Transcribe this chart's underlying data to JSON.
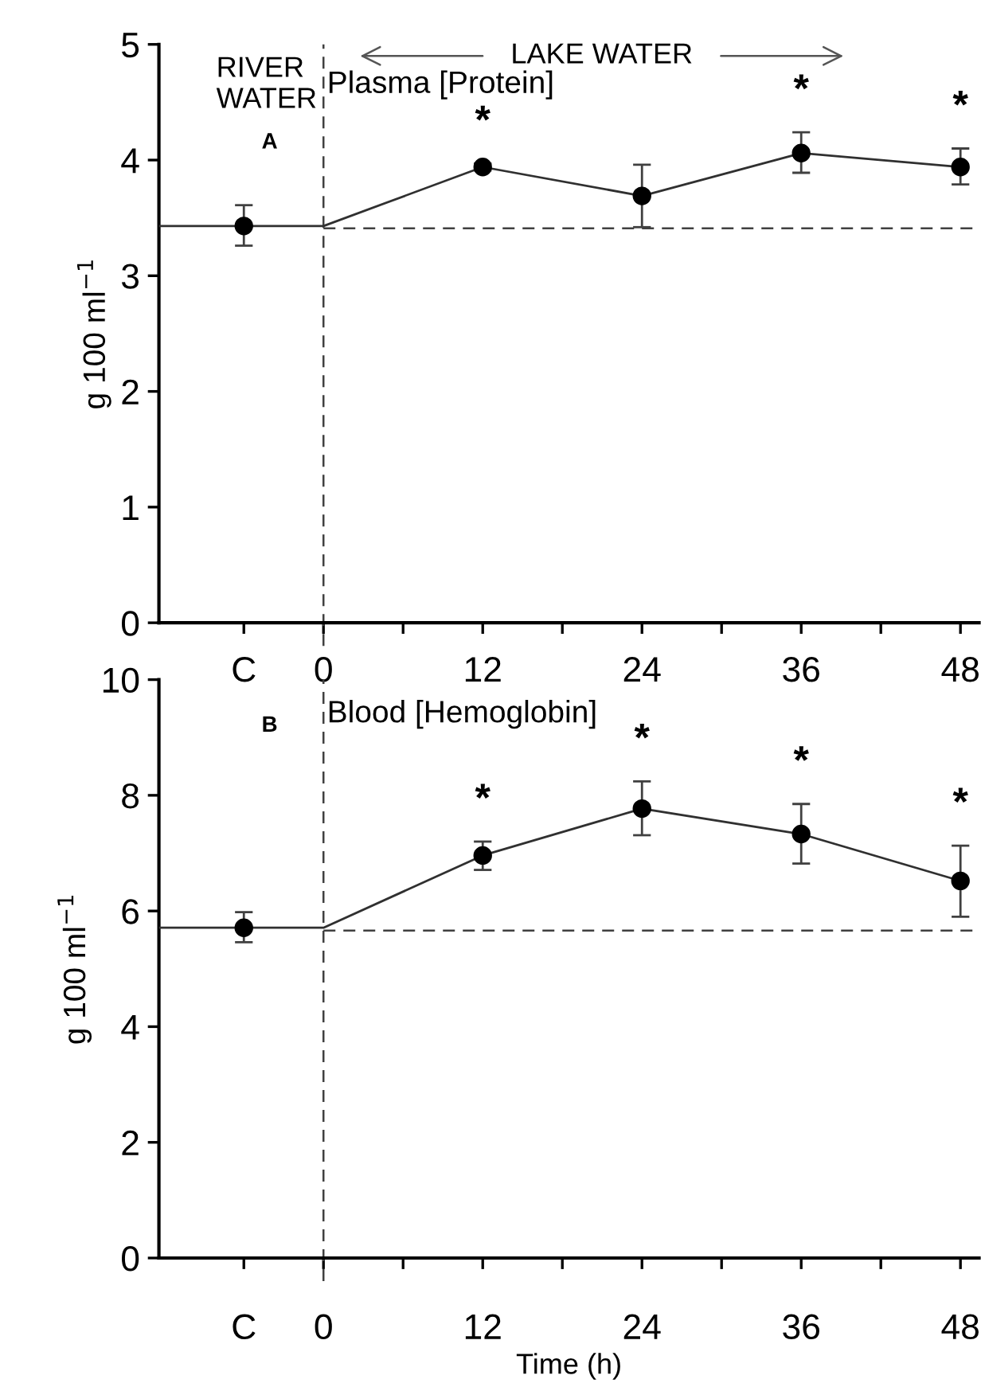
{
  "chart_data": [
    {
      "type": "line",
      "title": "Plasma [Protein]",
      "ylabel": "g 100 ml$^{−1}$",
      "xlim": [
        -12.4,
        49.4
      ],
      "ylim": [
        0,
        5
      ],
      "yticks": [
        0,
        1,
        2,
        3,
        4,
        5
      ],
      "xticks": [
        {
          "value": -6,
          "label": "C"
        },
        0,
        {
          "value": 6,
          "label": null
        },
        12,
        {
          "value": 18,
          "label": null
        },
        24,
        {
          "value": 30,
          "label": null
        },
        36,
        {
          "value": 42,
          "label": null
        },
        48
      ],
      "series": [
        {
          "type": "line",
          "color": "#303030",
          "marker": "none",
          "x": [
            -12.4,
            0,
            12,
            24,
            36,
            48
          ],
          "values": [
            3.43,
            3.43,
            3.94,
            3.69,
            4.06,
            3.94
          ]
        },
        {
          "type": "scatter",
          "color": "#000000",
          "marker": "circle",
          "x": [
            -6,
            12,
            24,
            36,
            48
          ],
          "values": [
            3.43,
            3.94,
            3.69,
            4.06,
            3.94
          ],
          "errors": [
            [
              3.26,
              3.61
            ],
            [
              3.91,
              3.97
            ],
            [
              3.42,
              3.96
            ],
            [
              3.89,
              4.24
            ],
            [
              3.79,
              4.1
            ]
          ]
        }
      ],
      "ref_lines": [
        {
          "axis": "y",
          "value": 3.41,
          "line_style": "dashed",
          "color": "#404040"
        },
        {
          "axis": "x",
          "value": 0,
          "line_style": "dashed",
          "color": "#404040"
        }
      ],
      "annotations": [
        "RIVER\nWATER",
        "LAKE WATER",
        "A",
        "*",
        "*",
        "*"
      ],
      "grid": false
    },
    {
      "type": "line",
      "title": "Blood [Hemoglobin]",
      "ylabel": "g 100 ml$^{−1}$",
      "xlabel": "Time (h)",
      "xlim": [
        -12.4,
        49.4
      ],
      "ylim": [
        0,
        10
      ],
      "yticks": [
        0,
        2,
        4,
        6,
        8,
        10
      ],
      "xticks": [
        {
          "value": -6,
          "label": "C"
        },
        0,
        {
          "value": 6,
          "label": null
        },
        12,
        {
          "value": 18,
          "label": null
        },
        24,
        {
          "value": 30,
          "label": null
        },
        36,
        {
          "value": 42,
          "label": null
        },
        48
      ],
      "series": [
        {
          "type": "line",
          "color": "#303030",
          "marker": "none",
          "x": [
            -12.4,
            0,
            12,
            24,
            36,
            48
          ],
          "values": [
            5.71,
            5.71,
            6.96,
            7.77,
            7.33,
            6.52
          ]
        },
        {
          "type": "scatter",
          "color": "#000000",
          "marker": "circle",
          "x": [
            -6,
            12,
            24,
            36,
            48
          ],
          "values": [
            5.71,
            6.96,
            7.77,
            7.33,
            6.52
          ],
          "errors": [
            [
              5.46,
              5.98
            ],
            [
              6.71,
              7.2
            ],
            [
              7.31,
              8.24
            ],
            [
              6.82,
              7.85
            ],
            [
              5.9,
              7.13
            ]
          ]
        }
      ],
      "ref_lines": [
        {
          "axis": "y",
          "value": 5.66,
          "line_style": "dashed",
          "color": "#404040"
        },
        {
          "axis": "x",
          "value": 0,
          "line_style": "dashed",
          "color": "#404040"
        }
      ],
      "annotations": [
        "B",
        "*",
        "*",
        "*",
        "*"
      ],
      "grid": false
    }
  ]
}
